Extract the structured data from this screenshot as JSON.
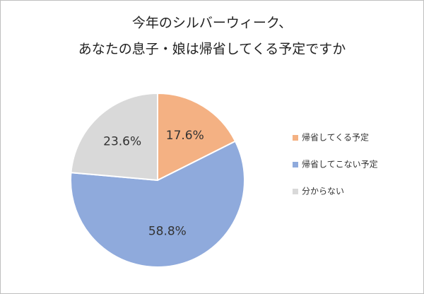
{
  "chart_data": {
    "type": "pie",
    "title": [
      "今年のシルバーウィーク、",
      "あなたの息子・娘は帰省してくる予定ですか"
    ],
    "categories": [
      "帰省してくる予定",
      "帰省してこない予定",
      "分からない"
    ],
    "values": [
      17.6,
      58.8,
      23.6
    ],
    "value_labels": [
      "17.6%",
      "58.8%",
      "23.6%"
    ],
    "colors": [
      "#f4b183",
      "#8faadc",
      "#d9d9d9"
    ],
    "legend": "right"
  }
}
